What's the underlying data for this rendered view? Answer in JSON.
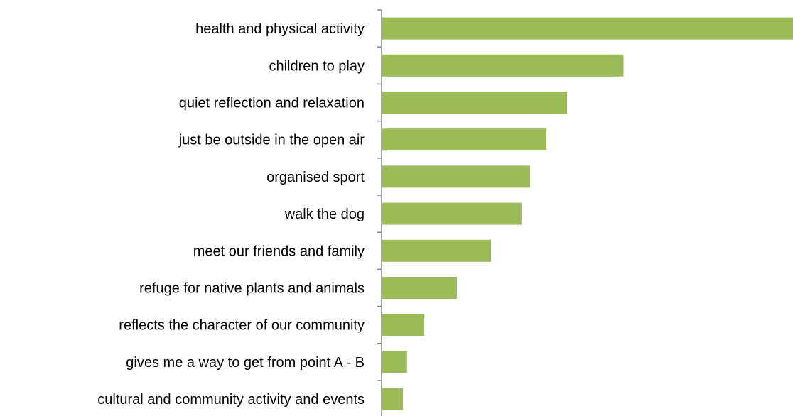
{
  "chart_data": {
    "type": "bar",
    "orientation": "horizontal",
    "title": "",
    "xlabel": "",
    "ylabel": "",
    "categories": [
      "health and physical activity",
      "children to play",
      "quiet reflection and relaxation",
      "just be outside in the open air",
      "organised sport",
      "walk the dog",
      "meet our friends and family",
      "refuge for native plants and animals",
      "reflects the character of our community",
      "gives me a way to get from point A - B",
      "cultural and community activity and events"
    ],
    "values": [
      100,
      58.8,
      45.1,
      40.1,
      36.1,
      34.0,
      26.6,
      18.3,
      10.4,
      6.2,
      5.2
    ],
    "xlim": [
      0,
      100
    ],
    "grid": false,
    "legend": "none",
    "bar_color": "#9bbb59",
    "axis_color": "#868686"
  }
}
